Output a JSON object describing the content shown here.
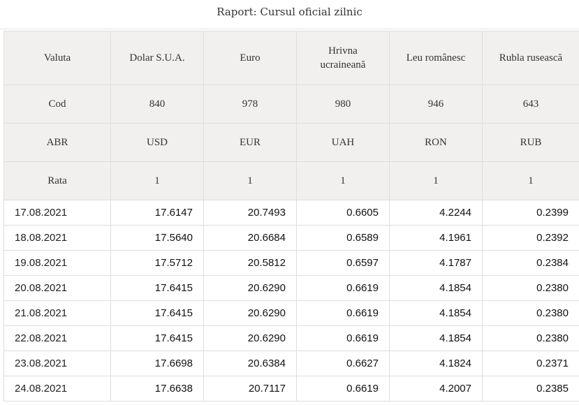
{
  "report": {
    "title": "Raport: Cursul oficial zilnic"
  },
  "table": {
    "header_rows": [
      {
        "label": "Valuta",
        "cells": [
          "Dolar S.U.A.",
          "Euro",
          "Hrivna ucraineană",
          "Leu românesc",
          "Rubla rusească"
        ]
      },
      {
        "label": "Cod",
        "cells": [
          "840",
          "978",
          "980",
          "946",
          "643"
        ]
      },
      {
        "label": "ABR",
        "cells": [
          "USD",
          "EUR",
          "UAH",
          "RON",
          "RUB"
        ]
      },
      {
        "label": "Rata",
        "cells": [
          "1",
          "1",
          "1",
          "1",
          "1"
        ]
      }
    ],
    "rows": [
      {
        "date": "17.08.2021",
        "values": [
          "17.6147",
          "20.7493",
          "0.6605",
          "4.2244",
          "0.2399"
        ]
      },
      {
        "date": "18.08.2021",
        "values": [
          "17.5640",
          "20.6684",
          "0.6589",
          "4.1961",
          "0.2392"
        ]
      },
      {
        "date": "19.08.2021",
        "values": [
          "17.5712",
          "20.5812",
          "0.6597",
          "4.1787",
          "0.2384"
        ]
      },
      {
        "date": "20.08.2021",
        "values": [
          "17.6415",
          "20.6290",
          "0.6619",
          "4.1854",
          "0.2380"
        ]
      },
      {
        "date": "21.08.2021",
        "values": [
          "17.6415",
          "20.6290",
          "0.6619",
          "4.1854",
          "0.2380"
        ]
      },
      {
        "date": "22.08.2021",
        "values": [
          "17.6415",
          "20.6290",
          "0.6619",
          "4.1854",
          "0.2380"
        ]
      },
      {
        "date": "23.08.2021",
        "values": [
          "17.6698",
          "20.6384",
          "0.6627",
          "4.1824",
          "0.2371"
        ]
      },
      {
        "date": "24.08.2021",
        "values": [
          "17.6638",
          "20.7117",
          "0.6619",
          "4.2007",
          "0.2385"
        ]
      }
    ]
  }
}
